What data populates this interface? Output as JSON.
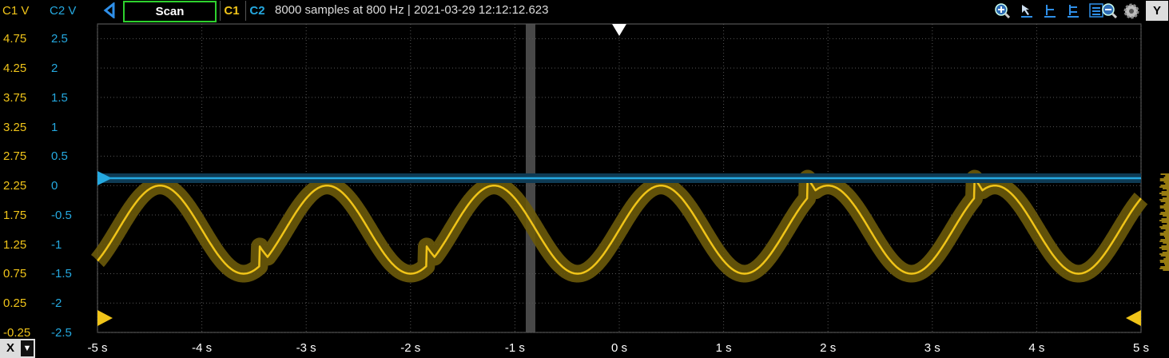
{
  "toolbar": {
    "c1_units": "C1 V",
    "c2_units": "C2 V",
    "mode_button": "Scan",
    "ch1_button": "C1",
    "ch2_button": "C2",
    "status_text": "8000 samples at 800 Hz | 2021-03-29 12:12:12.623",
    "icons": [
      "zoom-in-icon",
      "cursor-arrow-icon",
      "marker-icon",
      "marker-range-icon",
      "menu-list-icon",
      "zoom-out-icon",
      "settings-gear-icon"
    ],
    "y_button": "Y"
  },
  "axes": {
    "c1_ticks": [
      "4.75",
      "4.25",
      "3.75",
      "3.25",
      "2.75",
      "2.25",
      "1.75",
      "1.25",
      "0.75",
      "0.25",
      "-0.25"
    ],
    "c2_ticks": [
      "2.5",
      "2",
      "1.5",
      "1",
      "0.5",
      "0",
      "-0.5",
      "-1",
      "-1.5",
      "-2",
      "-2.5"
    ],
    "x_ticks": [
      "-5 s",
      "-4 s",
      "-3 s",
      "-2 s",
      "-1 s",
      "0 s",
      "1 s",
      "2 s",
      "3 s",
      "4 s",
      "5 s"
    ],
    "x_button": "X"
  },
  "chart_data": {
    "type": "line",
    "x_range_s": [
      -5,
      5
    ],
    "c1_range_V": [
      -0.25,
      5
    ],
    "c2_range_V": [
      -2.5,
      2.5
    ],
    "grid": true,
    "series": [
      {
        "name": "C1",
        "color": "#f0c419",
        "waveform": "sine",
        "period_s": 1.6,
        "min_V": 0.75,
        "max_V": 2.25,
        "peaks_s": [
          -4.4,
          -2.8,
          -1.15,
          0.6,
          2.4,
          4.05
        ],
        "spikes_s": [
          -3.45,
          -1.85,
          1.8,
          3.4,
          5.0
        ]
      },
      {
        "name": "C2",
        "color": "#25a9e0",
        "waveform": "flat",
        "value_V": 0
      }
    ],
    "scan_cursor_s": -0.85,
    "colors": {
      "c1": "#f0c419",
      "c2": "#25a9e0",
      "grid": "#555555"
    }
  }
}
